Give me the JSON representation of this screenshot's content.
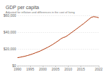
{
  "chart_data": {
    "type": "line",
    "title": "GDP per capita",
    "subtitle": "Adjusted for inflation and differences in the cost of living",
    "x": [
      1990,
      1991,
      1992,
      1993,
      1994,
      1995,
      1996,
      1997,
      1998,
      1999,
      2000,
      2001,
      2002,
      2003,
      2004,
      2005,
      2006,
      2007,
      2008,
      2009,
      2010,
      2011,
      2012,
      2013,
      2014,
      2015,
      2016,
      2017,
      2018,
      2019,
      2020,
      2021,
      2022
    ],
    "values": [
      9500,
      10000,
      10600,
      11300,
      12100,
      13000,
      14000,
      15200,
      16300,
      17500,
      19000,
      20500,
      22000,
      23700,
      25500,
      27500,
      29500,
      31800,
      33500,
      34500,
      36500,
      38800,
      41000,
      43200,
      45500,
      47800,
      50000,
      52500,
      55000,
      57500,
      58500,
      58000,
      57200
    ],
    "color": "#b13507",
    "xlim": [
      1990,
      2022
    ],
    "xticks": [
      1990,
      1995,
      2000,
      2005,
      2010,
      2015,
      2022
    ],
    "ylim": [
      0,
      60000
    ],
    "yticks": [
      {
        "value": 0,
        "label": "$0"
      },
      {
        "value": 20000,
        "label": "$20,000"
      },
      {
        "value": 40000,
        "label": "$40,000"
      },
      {
        "value": 60000,
        "label": "$60,000"
      }
    ],
    "grid": true
  }
}
